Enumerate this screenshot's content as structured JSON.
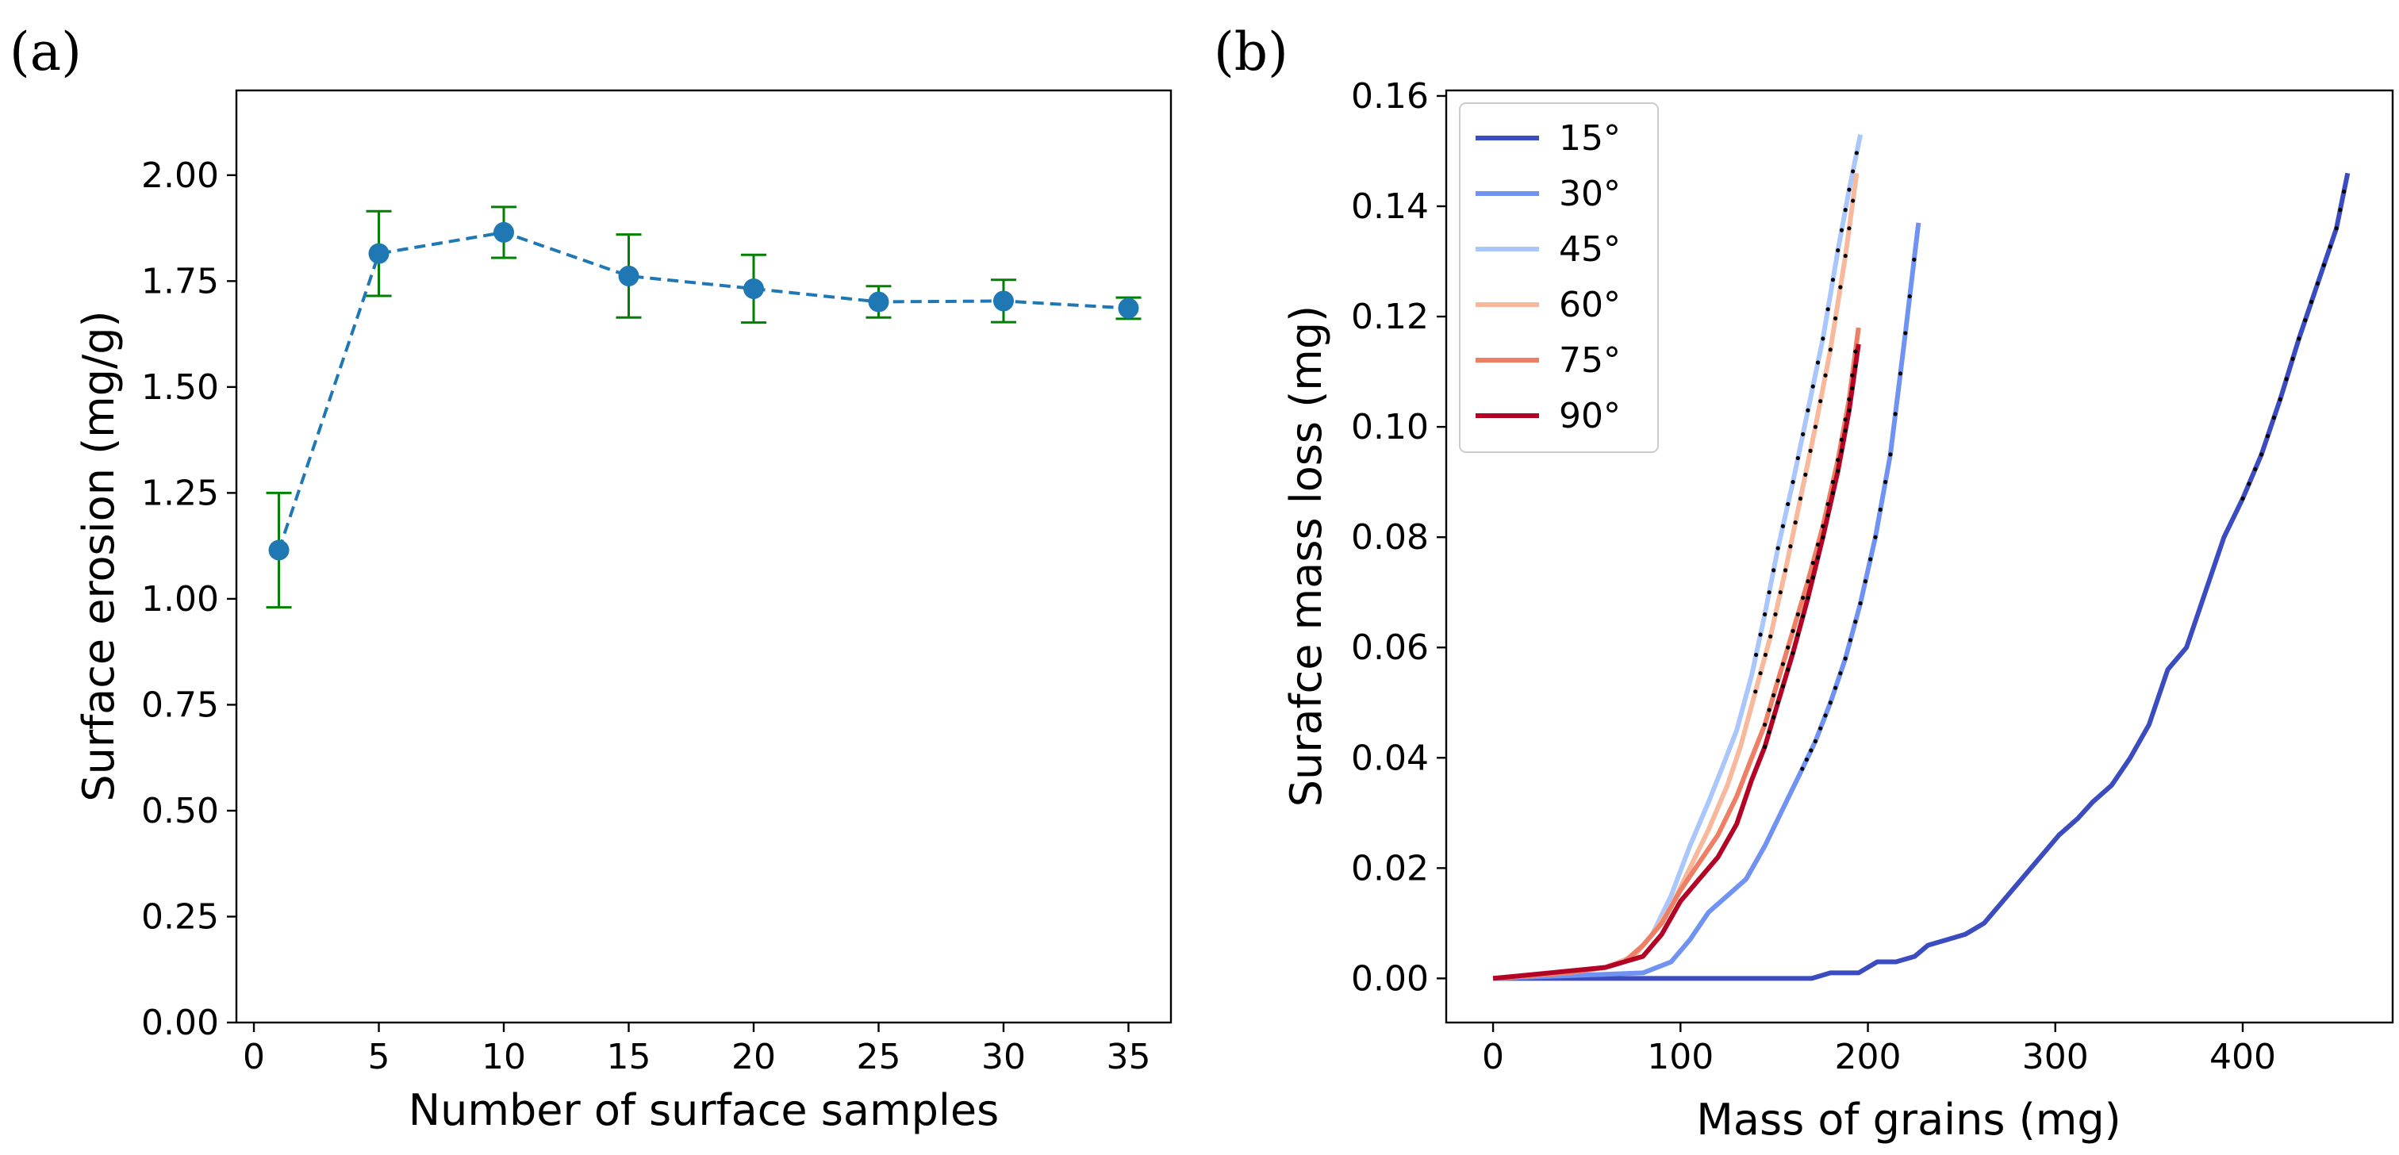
{
  "chart_data": [
    {
      "panel": "(a)",
      "type": "line",
      "style": "dashed line with markers and error bars",
      "xlabel": "Number of surface samples",
      "ylabel": "Surface erosion (mg/g)",
      "xlim": [
        -0.7,
        36.7
      ],
      "ylim": [
        0.0,
        2.2
      ],
      "xticks": [
        0,
        5,
        10,
        15,
        20,
        25,
        30,
        35
      ],
      "yticks": [
        0.0,
        0.25,
        0.5,
        0.75,
        1.0,
        1.25,
        1.5,
        1.75,
        2.0
      ],
      "ytick_labels": [
        "0.00",
        "0.25",
        "0.50",
        "0.75",
        "1.00",
        "1.25",
        "1.50",
        "1.75",
        "2.00"
      ],
      "line_color": "#1f77b4",
      "errorbar_color": "#008000",
      "x": [
        1,
        5,
        10,
        15,
        20,
        25,
        30,
        35
      ],
      "y": [
        1.115,
        1.815,
        1.865,
        1.762,
        1.732,
        1.701,
        1.703,
        1.686
      ],
      "yerr": [
        0.135,
        0.1,
        0.06,
        0.098,
        0.08,
        0.037,
        0.05,
        0.025
      ]
    },
    {
      "panel": "(b)",
      "type": "line",
      "xlabel": "Mass of grains (mg)",
      "ylabel": "Surafce mass loss (mg)",
      "xlim": [
        -25,
        480
      ],
      "ylim": [
        -0.008,
        0.161
      ],
      "xticks": [
        0,
        100,
        200,
        300,
        400
      ],
      "yticks": [
        0.0,
        0.02,
        0.04,
        0.06,
        0.08,
        0.1,
        0.12,
        0.14,
        0.16
      ],
      "ytick_labels": [
        "0.00",
        "0.02",
        "0.04",
        "0.06",
        "0.08",
        "0.10",
        "0.12",
        "0.14",
        "0.16"
      ],
      "legend_position": "upper-left",
      "series": [
        {
          "name": "15°",
          "color": "#3b4cc0",
          "x": [
            0,
            100,
            170,
            180,
            195,
            205,
            215,
            225,
            232,
            242,
            252,
            262,
            272,
            282,
            292,
            302,
            312,
            320,
            330,
            340,
            350,
            360,
            370,
            380,
            390,
            400,
            410,
            420,
            430,
            440,
            450,
            456
          ],
          "y": [
            0,
            0,
            0,
            0.001,
            0.001,
            0.003,
            0.003,
            0.004,
            0.006,
            0.007,
            0.008,
            0.01,
            0.014,
            0.018,
            0.022,
            0.026,
            0.029,
            0.032,
            0.035,
            0.04,
            0.046,
            0.056,
            0.06,
            0.07,
            0.08,
            0.087,
            0.095,
            0.105,
            0.116,
            0.126,
            0.136,
            0.146
          ],
          "markers_from_x": 400
        },
        {
          "name": "30°",
          "color": "#6f92f3",
          "x": [
            0,
            80,
            95,
            105,
            115,
            125,
            135,
            145,
            155,
            165,
            172,
            180,
            188,
            196,
            204,
            212,
            220,
            227
          ],
          "y": [
            0,
            0.001,
            0.003,
            0.007,
            0.012,
            0.015,
            0.018,
            0.024,
            0.031,
            0.038,
            0.043,
            0.05,
            0.058,
            0.068,
            0.08,
            0.095,
            0.117,
            0.137
          ],
          "markers_from_x": 165
        },
        {
          "name": "45°",
          "color": "#aac7fd",
          "x": [
            0,
            40,
            60,
            75,
            85,
            95,
            105,
            115,
            122,
            130,
            138,
            145,
            152,
            160,
            168,
            176,
            184,
            190,
            196
          ],
          "y": [
            0,
            0.001,
            0.002,
            0.004,
            0.008,
            0.015,
            0.024,
            0.032,
            0.038,
            0.045,
            0.055,
            0.066,
            0.078,
            0.09,
            0.103,
            0.116,
            0.132,
            0.143,
            0.153
          ],
          "markers_from_x": 140
        },
        {
          "name": "60°",
          "color": "#f7b89c",
          "x": [
            0,
            40,
            60,
            75,
            85,
            95,
            105,
            115,
            125,
            132,
            140,
            148,
            156,
            164,
            172,
            180,
            188,
            194
          ],
          "y": [
            0,
            0.001,
            0.002,
            0.004,
            0.008,
            0.013,
            0.02,
            0.027,
            0.035,
            0.042,
            0.052,
            0.062,
            0.074,
            0.087,
            0.1,
            0.114,
            0.131,
            0.146
          ],
          "markers_from_x": 140
        },
        {
          "name": "75°",
          "color": "#ee7f65",
          "x": [
            0,
            40,
            60,
            70,
            80,
            90,
            100,
            110,
            120,
            130,
            138,
            145,
            152,
            160,
            168,
            176,
            184,
            190,
            195
          ],
          "y": [
            0,
            0.001,
            0.002,
            0.003,
            0.006,
            0.01,
            0.016,
            0.021,
            0.026,
            0.033,
            0.04,
            0.046,
            0.054,
            0.063,
            0.072,
            0.082,
            0.094,
            0.105,
            0.118
          ],
          "markers_from_x": 145
        },
        {
          "name": "90°",
          "color": "#b40426",
          "x": [
            0,
            30,
            60,
            70,
            80,
            90,
            100,
            110,
            120,
            130,
            138,
            145,
            152,
            160,
            168,
            176,
            184,
            190,
            195
          ],
          "y": [
            0,
            0.001,
            0.002,
            0.003,
            0.004,
            0.008,
            0.014,
            0.018,
            0.022,
            0.028,
            0.036,
            0.042,
            0.05,
            0.059,
            0.069,
            0.08,
            0.092,
            0.103,
            0.115
          ],
          "markers_from_x": 145
        }
      ]
    }
  ]
}
